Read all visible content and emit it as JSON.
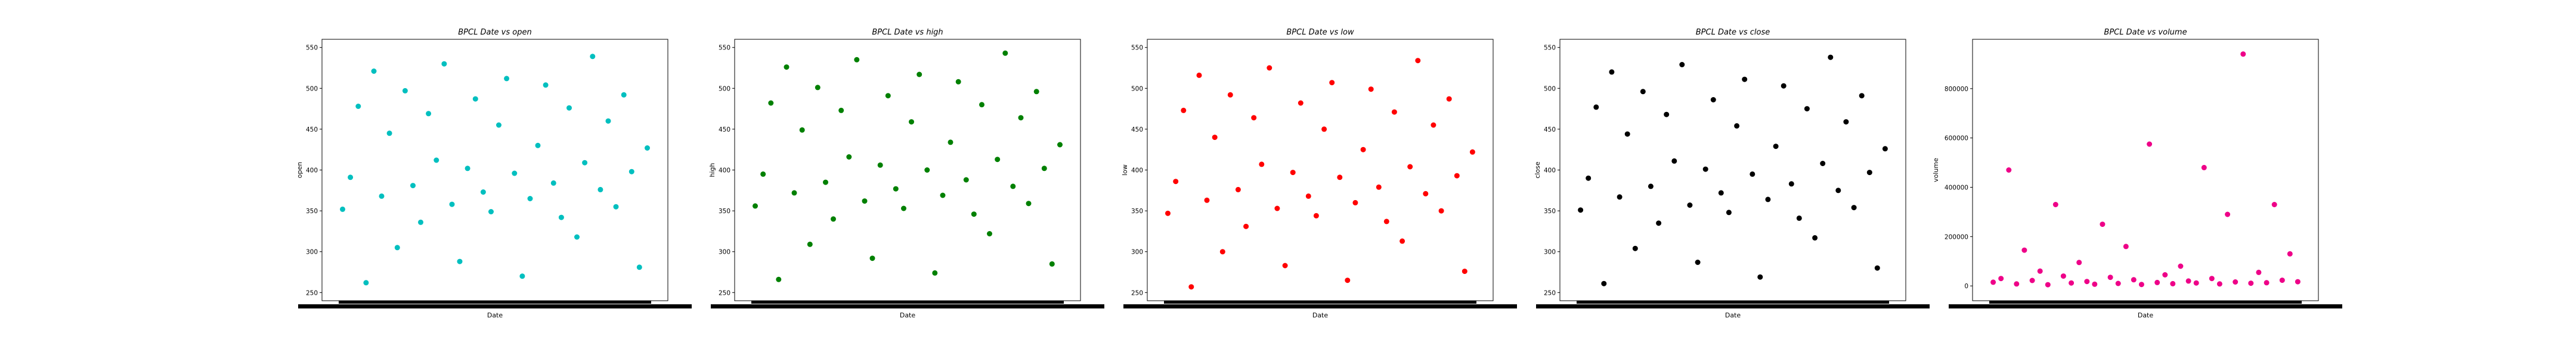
{
  "chart_data": [
    {
      "type": "scatter",
      "title": "BPCL Date vs open",
      "xlabel": "Date",
      "ylabel": "open",
      "color": "#00bfbf",
      "ylim": [
        240,
        560
      ],
      "yticks": [
        250,
        300,
        350,
        400,
        450,
        500,
        550
      ],
      "ytick_labels": [
        "250",
        "300",
        "350",
        "400",
        "450",
        "500",
        "550"
      ],
      "grid": false,
      "series": [
        {
          "values": [
            352,
            391,
            478,
            262,
            521,
            368,
            445,
            305,
            497,
            381,
            336,
            469,
            412,
            530,
            358,
            288,
            402,
            487,
            373,
            349,
            455,
            512,
            396,
            270,
            365,
            430,
            504,
            384,
            342,
            476,
            318,
            409,
            539,
            376,
            460,
            355,
            492,
            398,
            281,
            427
          ]
        }
      ]
    },
    {
      "type": "scatter",
      "title": "BPCL Date vs high",
      "xlabel": "Date",
      "ylabel": "high",
      "color": "#008000",
      "ylim": [
        240,
        560
      ],
      "yticks": [
        250,
        300,
        350,
        400,
        450,
        500,
        550
      ],
      "ytick_labels": [
        "250",
        "300",
        "350",
        "400",
        "450",
        "500",
        "550"
      ],
      "grid": false,
      "series": [
        {
          "values": [
            356,
            395,
            482,
            266,
            526,
            372,
            449,
            309,
            501,
            385,
            340,
            473,
            416,
            535,
            362,
            292,
            406,
            491,
            377,
            353,
            459,
            517,
            400,
            274,
            369,
            434,
            508,
            388,
            346,
            480,
            322,
            413,
            543,
            380,
            464,
            359,
            496,
            402,
            285,
            431
          ]
        }
      ]
    },
    {
      "type": "scatter",
      "title": "BPCL Date vs low",
      "xlabel": "Date",
      "ylabel": "low",
      "color": "#ff0000",
      "ylim": [
        240,
        560
      ],
      "yticks": [
        250,
        300,
        350,
        400,
        450,
        500,
        550
      ],
      "ytick_labels": [
        "250",
        "300",
        "350",
        "400",
        "450",
        "500",
        "550"
      ],
      "grid": false,
      "series": [
        {
          "values": [
            347,
            386,
            473,
            257,
            516,
            363,
            440,
            300,
            492,
            376,
            331,
            464,
            407,
            525,
            353,
            283,
            397,
            482,
            368,
            344,
            450,
            507,
            391,
            265,
            360,
            425,
            499,
            379,
            337,
            471,
            313,
            404,
            534,
            371,
            455,
            350,
            487,
            393,
            276,
            422
          ]
        }
      ]
    },
    {
      "type": "scatter",
      "title": "BPCL Date vs close",
      "xlabel": "Date",
      "ylabel": "close",
      "color": "#000000",
      "ylim": [
        240,
        560
      ],
      "yticks": [
        250,
        300,
        350,
        400,
        450,
        500,
        550
      ],
      "ytick_labels": [
        "250",
        "300",
        "350",
        "400",
        "450",
        "500",
        "550"
      ],
      "grid": false,
      "series": [
        {
          "values": [
            351,
            390,
            477,
            261,
            520,
            367,
            444,
            304,
            496,
            380,
            335,
            468,
            411,
            529,
            357,
            287,
            401,
            486,
            372,
            348,
            454,
            511,
            395,
            269,
            364,
            429,
            503,
            383,
            341,
            475,
            317,
            408,
            538,
            375,
            459,
            354,
            491,
            397,
            280,
            426
          ]
        }
      ]
    },
    {
      "type": "scatter",
      "title": "BPCL Date vs volume",
      "xlabel": "Date",
      "ylabel": "volume",
      "color": "#ee0088",
      "ylim": [
        -60000,
        1000000
      ],
      "yticks": [
        0,
        200000,
        400000,
        600000,
        800000
      ],
      "ytick_labels": [
        "0",
        "200000",
        "400000",
        "600000",
        "800000"
      ],
      "grid": false,
      "series": [
        {
          "values": [
            15000,
            30000,
            470000,
            8000,
            145000,
            22000,
            60000,
            5000,
            330000,
            40000,
            12000,
            95000,
            18000,
            7000,
            250000,
            35000,
            10000,
            160000,
            25000,
            6000,
            575000,
            14000,
            45000,
            9000,
            80000,
            20000,
            12000,
            480000,
            30000,
            8000,
            290000,
            16000,
            940000,
            11000,
            55000,
            13000,
            330000,
            23000,
            130000,
            17000
          ]
        }
      ]
    }
  ]
}
